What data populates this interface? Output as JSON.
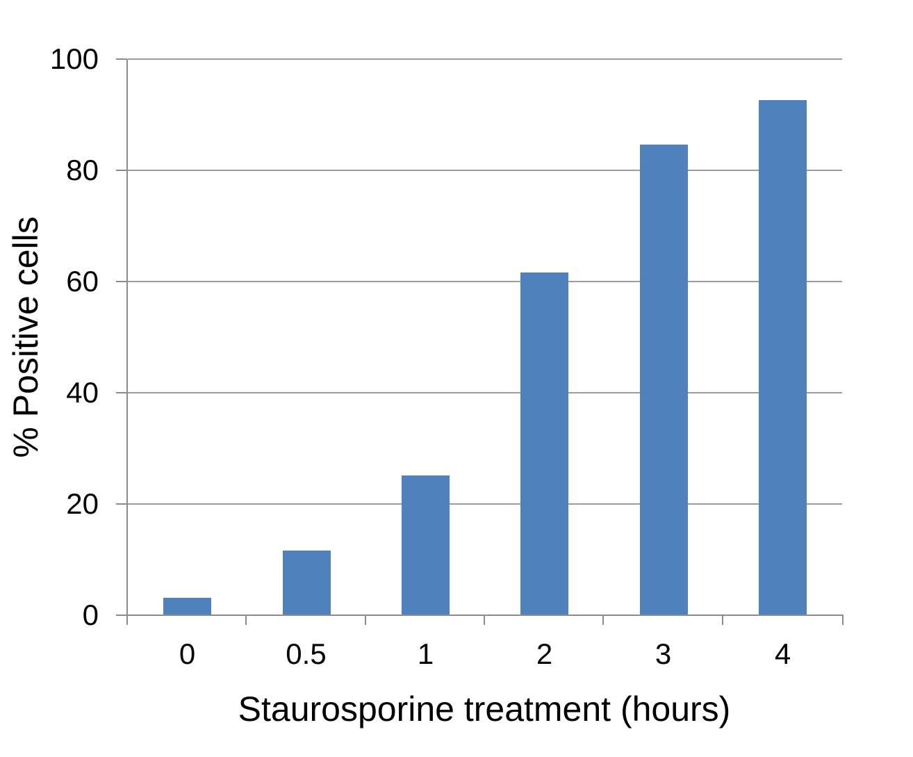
{
  "chart_data": {
    "type": "bar",
    "title": "",
    "xlabel": "Staurosporine treatment (hours)",
    "ylabel": "% Positive cells",
    "categories": [
      "0",
      "0.5",
      "1",
      "2",
      "3",
      "4"
    ],
    "values": [
      3,
      11.5,
      25,
      61.5,
      84.5,
      92.5
    ],
    "series_name": "",
    "ylim": [
      0,
      100
    ],
    "yticks": [
      0,
      20,
      40,
      60,
      80,
      100
    ],
    "grid": "horizontal",
    "legend_position": "none",
    "bar_color": "#4F81BD",
    "axis_color": "#8C8C8C",
    "gridline_color": "#9C9C9C",
    "text_color": "#000000",
    "background_color": "#FFFFFF"
  }
}
